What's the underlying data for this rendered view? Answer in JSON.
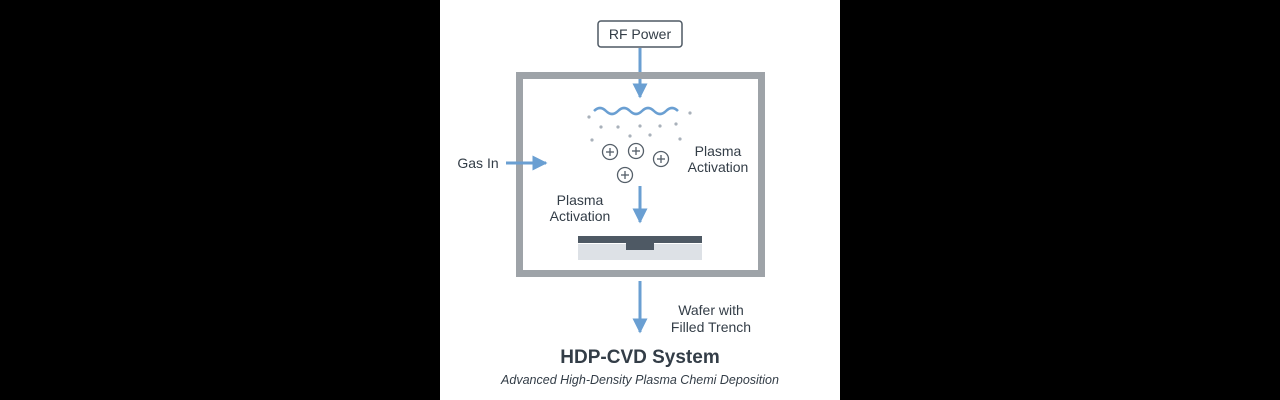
{
  "labels": {
    "rf_power": "RF Power",
    "gas_in": "Gas In",
    "plasma_activation_right": [
      "Plasma",
      "Activation"
    ],
    "plasma_activation_left": [
      "Plasma",
      "Activation"
    ],
    "wafer_output": [
      "Wafer with",
      "Filled Trench"
    ]
  },
  "title": "HDP-CVD System",
  "subtitle": "Advanced High-Density Plasma Chemi Deposition",
  "colors": {
    "background": "#000000",
    "panel": "#ffffff",
    "chamber_wall": "#9ea3a8",
    "arrow": "#6a9fd2",
    "text": "#333d47",
    "wafer_top": "#4e5964",
    "wafer_base": "#dde1e6",
    "particle": "#a9b1ba",
    "ion": "#555f69"
  },
  "icons": {
    "rf_wave": "sine-wave-icon",
    "ion": "plus-circle-icon"
  }
}
